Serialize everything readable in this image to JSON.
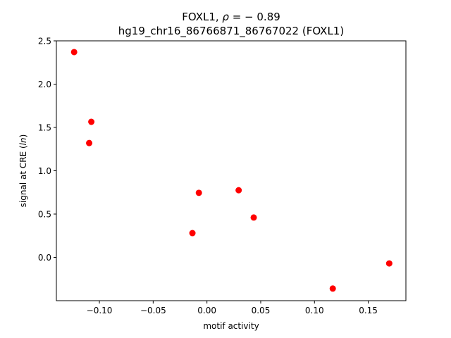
{
  "chart_data": {
    "type": "scatter",
    "title_line1_prefix": "FOXL1, ",
    "title_line1_rho": "ρ",
    "title_line1_suffix": " = − 0.89",
    "title_line2": "hg19_chr16_86766871_86767022 (FOXL1)",
    "xlabel": "motif activity",
    "ylabel_prefix": "signal at CRE (",
    "ylabel_italic": "ln",
    "ylabel_suffix": ")",
    "xlim": [
      -0.14,
      0.185
    ],
    "ylim": [
      -0.5,
      2.5
    ],
    "x_ticks": [
      -0.1,
      -0.05,
      0.0,
      0.05,
      0.1,
      0.15
    ],
    "x_tick_labels": [
      "−0.10",
      "−0.05",
      "0.00",
      "0.05",
      "0.10",
      "0.15"
    ],
    "y_ticks": [
      0.0,
      0.5,
      1.0,
      1.5,
      2.0,
      2.5
    ],
    "y_tick_labels": [
      "0.0",
      "0.5",
      "1.0",
      "1.5",
      "2.0",
      "2.5"
    ],
    "grid": false,
    "marker_color": "#ff0000",
    "points": [
      {
        "x": -0.1235,
        "y": 2.37
      },
      {
        "x": -0.1075,
        "y": 1.565
      },
      {
        "x": -0.1095,
        "y": 1.32
      },
      {
        "x": -0.0075,
        "y": 0.745
      },
      {
        "x": 0.0295,
        "y": 0.775
      },
      {
        "x": 0.0435,
        "y": 0.46
      },
      {
        "x": -0.0135,
        "y": 0.28
      },
      {
        "x": 0.1695,
        "y": -0.07
      },
      {
        "x": 0.117,
        "y": -0.36
      }
    ]
  }
}
